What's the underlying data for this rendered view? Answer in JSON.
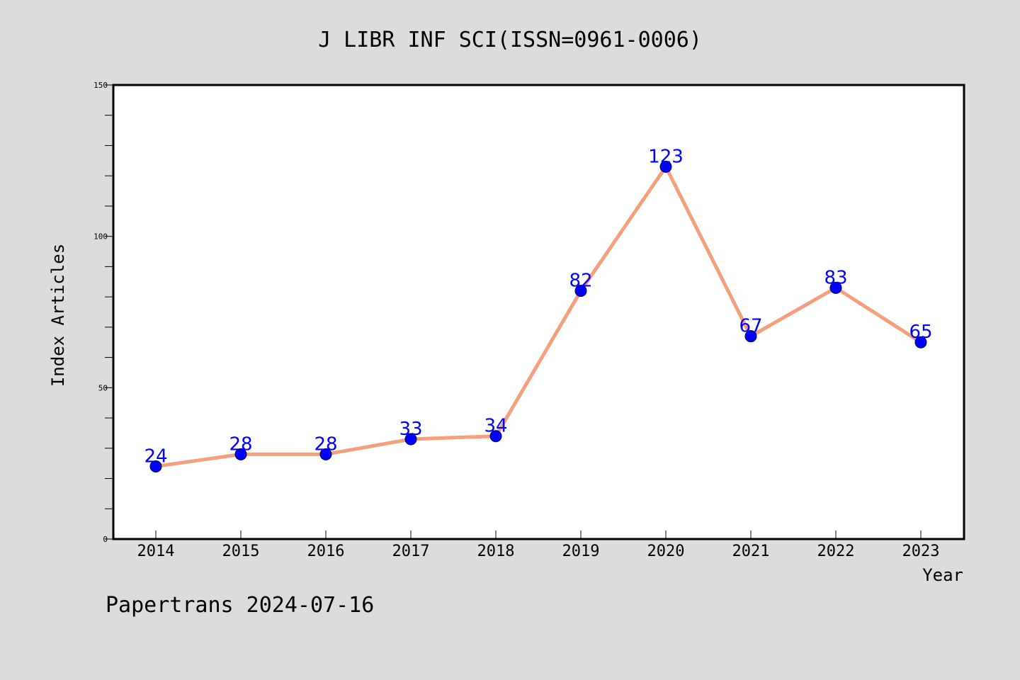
{
  "chart_data": {
    "type": "line",
    "title": "J LIBR INF SCI(ISSN=0961-0006)",
    "xlabel": "Year",
    "ylabel": "Index Articles",
    "categories": [
      "2014",
      "2015",
      "2016",
      "2017",
      "2018",
      "2019",
      "2020",
      "2021",
      "2022",
      "2023"
    ],
    "series": [
      {
        "values": [
          24,
          28,
          28,
          33,
          34,
          82,
          123,
          67,
          83,
          65
        ]
      }
    ],
    "ylim": [
      0,
      150
    ],
    "y_ticks": [
      "0",
      "50",
      "100",
      "150"
    ],
    "data_labels": [
      "24",
      "28",
      "28",
      "33",
      "34",
      "82",
      "123",
      "67",
      "83",
      "65"
    ],
    "grid": false,
    "colors": {
      "line": "#f4a07c",
      "marker": "#0000ff",
      "label": "#0000ff",
      "plot_background": "#ffffff",
      "page_background": "#dcdcdc"
    }
  },
  "footer": {
    "text": "Papertrans 2024-07-16"
  }
}
